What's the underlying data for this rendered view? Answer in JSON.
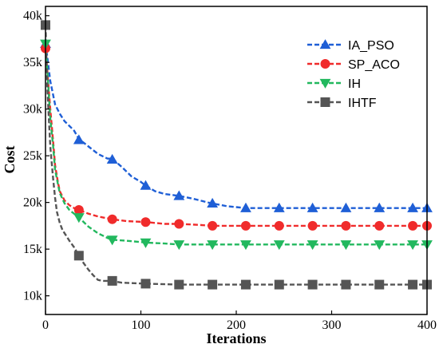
{
  "chart_data": {
    "type": "line",
    "title": "",
    "xlabel": "Iterations",
    "ylabel": "Cost",
    "xlim": [
      0,
      400
    ],
    "ylim": [
      8000,
      41000
    ],
    "xticks": [
      0,
      100,
      200,
      300,
      400
    ],
    "xtick_labels": [
      "0",
      "100",
      "200",
      "300",
      "400"
    ],
    "yticks": [
      10000,
      15000,
      20000,
      25000,
      30000,
      35000,
      40000
    ],
    "ytick_labels": [
      "10k",
      "15k",
      "20k",
      "25k",
      "30k",
      "35k",
      "40k"
    ],
    "grid": false,
    "legend_position": "top-right",
    "series": [
      {
        "name": "IA_PSO",
        "color": "#1f5fd6",
        "marker": "triangle-up",
        "line_x": [
          0,
          2,
          5,
          10,
          15,
          20,
          25,
          30,
          35,
          45,
          55,
          65,
          70,
          80,
          90,
          100,
          105,
          115,
          125,
          140,
          155,
          170,
          175,
          190,
          200,
          210,
          300,
          400
        ],
        "line_y": [
          37000,
          35500,
          33000,
          30500,
          29500,
          28700,
          28200,
          27700,
          26800,
          26000,
          25200,
          24700,
          24700,
          23800,
          22800,
          22200,
          21800,
          21200,
          20900,
          20700,
          20400,
          20000,
          19900,
          19600,
          19500,
          19400,
          19400,
          19400
        ],
        "marker_x": [
          0,
          35,
          70,
          105,
          140,
          175,
          210,
          245,
          280,
          315,
          350,
          385,
          400
        ],
        "marker_y": [
          37000,
          26700,
          24600,
          21800,
          20700,
          19900,
          19400,
          19400,
          19400,
          19400,
          19400,
          19400,
          19400
        ]
      },
      {
        "name": "SP_ACO",
        "color": "#f02b2b",
        "marker": "circle",
        "line_x": [
          0,
          2,
          5,
          8,
          10,
          13,
          15,
          18,
          20,
          25,
          30,
          35,
          45,
          55,
          70,
          85,
          105,
          125,
          140,
          160,
          175,
          400
        ],
        "line_y": [
          36500,
          34000,
          30000,
          26500,
          24000,
          22200,
          21200,
          20600,
          20200,
          19700,
          19400,
          19200,
          18800,
          18500,
          18200,
          18000,
          17900,
          17700,
          17700,
          17600,
          17500,
          17500
        ],
        "marker_x": [
          0,
          35,
          70,
          105,
          140,
          175,
          210,
          245,
          280,
          315,
          350,
          385,
          400
        ],
        "marker_y": [
          36500,
          19200,
          18200,
          17900,
          17700,
          17500,
          17500,
          17500,
          17500,
          17500,
          17500,
          17500,
          17500
        ]
      },
      {
        "name": "IH",
        "color": "#22b85e",
        "marker": "triangle-down",
        "line_x": [
          0,
          2,
          5,
          8,
          10,
          13,
          15,
          20,
          25,
          30,
          35,
          45,
          55,
          65,
          70,
          85,
          105,
          125,
          140,
          400
        ],
        "line_y": [
          37000,
          34000,
          29000,
          26000,
          23500,
          22000,
          21000,
          19900,
          19200,
          18800,
          18400,
          17400,
          16700,
          16200,
          16000,
          15900,
          15700,
          15600,
          15500,
          15500
        ],
        "marker_x": [
          0,
          35,
          70,
          105,
          140,
          175,
          210,
          245,
          280,
          315,
          350,
          385,
          400
        ],
        "marker_y": [
          37000,
          18400,
          16000,
          15700,
          15500,
          15500,
          15500,
          15500,
          15500,
          15500,
          15500,
          15500,
          15500
        ]
      },
      {
        "name": "IHTF",
        "color": "#555555",
        "marker": "square",
        "line_x": [
          0,
          2,
          5,
          8,
          10,
          12,
          15,
          18,
          20,
          25,
          30,
          35,
          40,
          45,
          50,
          55,
          60,
          70,
          80,
          105,
          140,
          400
        ],
        "line_y": [
          39000,
          32000,
          26000,
          22500,
          20500,
          19000,
          17800,
          17000,
          16700,
          15900,
          15200,
          14300,
          13500,
          12800,
          12200,
          11700,
          11600,
          11600,
          11400,
          11300,
          11200,
          11200
        ],
        "marker_x": [
          0,
          35,
          70,
          105,
          140,
          175,
          210,
          245,
          280,
          315,
          350,
          385,
          400
        ],
        "marker_y": [
          39000,
          14300,
          11600,
          11300,
          11200,
          11200,
          11200,
          11200,
          11200,
          11200,
          11200,
          11200,
          11200
        ]
      }
    ]
  }
}
